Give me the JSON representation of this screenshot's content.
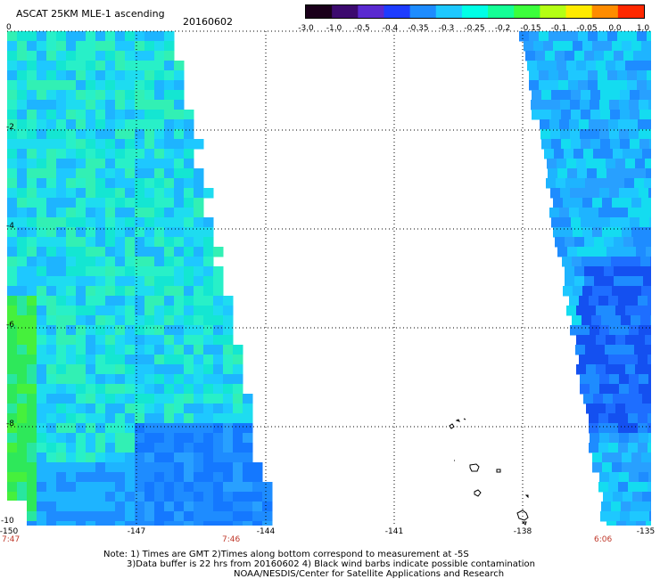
{
  "header": {
    "title": "ASCAT 25KM MLE-1 ascending",
    "date": "20160602"
  },
  "colorbar": {
    "labels": [
      "-3.0",
      "-1.0",
      "-0.5",
      "-0.4",
      "-0.35",
      "-0.3",
      "-0.25",
      "-0.2",
      "-0.15",
      "-0.1",
      "-0.05",
      "0.0",
      "1.0"
    ],
    "colors": [
      "#1a001a",
      "#3c0a6e",
      "#5a2ad0",
      "#1e3cff",
      "#1e8cff",
      "#1ec8ff",
      "#00ffe6",
      "#14ff96",
      "#3cff3c",
      "#b4ff14",
      "#ffeb00",
      "#ff8c00",
      "#ff2800"
    ]
  },
  "axes": {
    "y_labels": [
      "0",
      "-2",
      "-4",
      "-6",
      "-8",
      "-10"
    ],
    "x_labels": [
      "-150",
      "-147",
      "-144",
      "-141",
      "-138",
      "-135"
    ]
  },
  "swath_times": [
    "7:47",
    "7:46",
    "6:06"
  ],
  "footer": {
    "note_line1": "Note: 1) Times are GMT 2)Times along bottom correspond to measurement at -5S",
    "note_line2": "3)Data buffer is 22 hrs from 20160602 4) Black wind barbs indicate possible contamination",
    "credit": "NOAA/NESDIS/Center for Satellite Applications and Research"
  }
}
